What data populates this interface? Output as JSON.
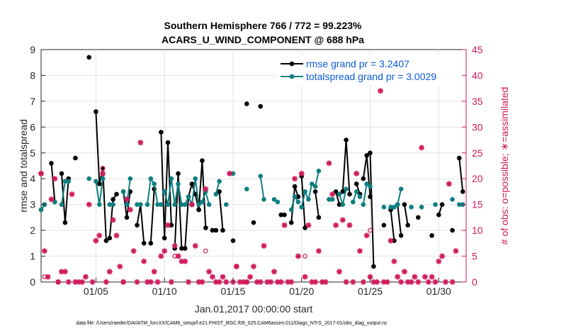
{
  "chart_data": {
    "type": "line",
    "title_line1": "Southern Hemisphere 766 / 772 = 99.223%",
    "title_line2": "ACARS_U_WIND_COMPONENT @ 688 hPa",
    "xlabel": "Jan.01,2017 00:00:00 start",
    "ylabel_left": "rmse and totalspread",
    "ylabel_right": "# of obs: o=possible; ∗=assimilated",
    "footnote": "data file: /Users/raeder/DAI/ATM_forcXX/CAM6_setup/f.e21.FHIST_BGC.f09_025.CAM6assim.011/Diags_NTrS_2017-01/obs_diag_output.nc",
    "xlim": [
      1,
      32
    ],
    "ylim_left": [
      0,
      9
    ],
    "ylim_right": [
      0,
      45
    ],
    "x_ticks": [
      5,
      10,
      15,
      20,
      25,
      30
    ],
    "x_tick_labels": [
      "01/05",
      "01/10",
      "01/15",
      "01/20",
      "01/25",
      "01/30"
    ],
    "y_left_ticks": [
      "0",
      "1",
      "2",
      "3",
      "4",
      "5",
      "6",
      "7",
      "8",
      "9"
    ],
    "y_right_ticks": [
      "0",
      "5",
      "10",
      "15",
      "20",
      "25",
      "30",
      "35",
      "40",
      "45"
    ],
    "colors": {
      "rmse": "#000000",
      "spread": "#0e7f80",
      "obs": "#d01b5c",
      "legend_text": "#0a5bd6"
    },
    "series": [
      {
        "name": "rmse grand pr = 3.2407",
        "segments": [
          [
            [
              1.0,
              2.8
            ],
            [
              1.25,
              3.0
            ]
          ],
          [
            [
              1.75,
              4.6
            ],
            [
              2.0,
              3.1
            ]
          ],
          [
            [
              2.5,
              4.2
            ],
            [
              2.75,
              2.3
            ],
            [
              3.0,
              4.0
            ]
          ],
          [
            [
              3.5,
              4.8
            ]
          ],
          [
            [
              4.5,
              8.7
            ]
          ],
          [
            [
              5.0,
              6.6
            ],
            [
              5.25,
              3.8
            ],
            [
              5.5,
              4.4
            ],
            [
              5.75,
              1.6
            ]
          ],
          [
            [
              6.0,
              1.7
            ],
            [
              6.25,
              3.2
            ],
            [
              6.5,
              3.4
            ]
          ],
          [
            [
              7.0,
              3.5
            ],
            [
              7.25,
              2.5
            ],
            [
              7.5,
              3.5
            ]
          ],
          [
            [
              8.0,
              2.2
            ],
            [
              8.25,
              3.0
            ],
            [
              8.5,
              1.5
            ]
          ],
          [
            [
              9.0,
              1.5
            ],
            [
              9.25,
              3.6
            ]
          ],
          [
            [
              9.75,
              5.8
            ],
            [
              10.0,
              1.7
            ],
            [
              10.25,
              5.4
            ],
            [
              10.5,
              2.2
            ]
          ],
          [
            [
              10.75,
              1.3
            ],
            [
              11.0,
              4.2
            ],
            [
              11.25,
              1.3
            ],
            [
              11.5,
              1.3
            ],
            [
              11.75,
              3.3
            ],
            [
              12.0,
              3.8
            ],
            [
              12.25,
              3.4
            ],
            [
              12.5,
              2.8
            ]
          ],
          [
            [
              12.5,
              2.8
            ],
            [
              12.75,
              4.7
            ],
            [
              13.0,
              2.1
            ]
          ],
          [
            [
              13.5,
              2.0
            ],
            [
              13.75,
              2.0
            ]
          ],
          [
            [
              14.0,
              3.5
            ],
            [
              14.25,
              2.0
            ]
          ],
          [
            [
              15.0,
              1.6
            ]
          ],
          [
            [
              16.0,
              6.9
            ]
          ],
          [
            [
              16.5,
              2.3
            ]
          ],
          [
            [
              17.0,
              6.8
            ]
          ],
          [
            [
              18.5,
              2.6
            ],
            [
              18.75,
              2.6
            ]
          ],
          [
            [
              19.25,
              2.3
            ],
            [
              19.5,
              3.7
            ],
            [
              19.75,
              3.3
            ]
          ],
          [
            [
              20.0,
              4.1
            ],
            [
              20.25,
              2.1
            ]
          ],
          [
            [
              21.0,
              3.5
            ],
            [
              21.25,
              2.5
            ]
          ],
          [
            [
              22.0,
              3.2
            ]
          ],
          [
            [
              22.5,
              3.5
            ],
            [
              22.75,
              3.0
            ]
          ],
          [
            [
              23.0,
              3.5
            ],
            [
              23.25,
              5.5
            ],
            [
              23.5,
              3.4
            ]
          ],
          [
            [
              24.0,
              3.8
            ],
            [
              24.25,
              3.4
            ]
          ],
          [
            [
              24.5,
              4.0
            ],
            [
              24.75,
              4.9
            ],
            [
              25.0,
              3.3
            ]
          ],
          [
            [
              25.0,
              5.0
            ],
            [
              25.25,
              0.6
            ]
          ],
          [
            [
              26.0,
              2.2
            ]
          ],
          [
            [
              26.5,
              2.8
            ],
            [
              26.75,
              1.6
            ]
          ],
          [
            [
              27.0,
              3.0
            ],
            [
              27.25,
              1.8
            ]
          ],
          [
            [
              27.5,
              3.0
            ],
            [
              27.75,
              2.2
            ]
          ],
          [
            [
              28.5,
              2.5
            ]
          ],
          [
            [
              29.5,
              1.8
            ]
          ],
          [
            [
              30.0,
              2.6
            ],
            [
              30.25,
              3.0
            ]
          ],
          [
            [
              31.0,
              2.0
            ]
          ],
          [
            [
              31.5,
              4.8
            ],
            [
              31.75,
              3.5
            ]
          ]
        ]
      },
      {
        "name": "totalspread grand pr = 3.0029",
        "segments": [
          [
            [
              1.0,
              2.8
            ],
            [
              1.25,
              3.0
            ]
          ],
          [
            [
              2.0,
              3.1
            ]
          ],
          [
            [
              2.5,
              3.0
            ],
            [
              2.75,
              3.9
            ],
            [
              3.0,
              3.9
            ]
          ],
          [
            [
              4.5,
              4.0
            ]
          ],
          [
            [
              5.0,
              3.9
            ],
            [
              5.25,
              3.0
            ],
            [
              5.5,
              4.0
            ]
          ],
          [
            [
              6.0,
              3.0
            ],
            [
              6.25,
              3.0
            ]
          ],
          [
            [
              7.0,
              3.5
            ],
            [
              7.25,
              3.0
            ],
            [
              7.5,
              4.0
            ]
          ],
          [
            [
              8.0,
              3.0
            ],
            [
              8.25,
              3.0
            ]
          ],
          [
            [
              8.75,
              3.0
            ],
            [
              9.0,
              4.0
            ],
            [
              9.25,
              3.8
            ],
            [
              9.5,
              3.0
            ],
            [
              9.75,
              3.0
            ]
          ],
          [
            [
              10.0,
              3.5
            ],
            [
              10.25,
              3.0
            ],
            [
              10.5,
              4.0
            ],
            [
              10.75,
              3.0
            ],
            [
              11.0,
              3.8
            ],
            [
              11.25,
              3.0
            ],
            [
              11.5,
              3.0
            ],
            [
              11.75,
              3.3
            ],
            [
              12.0,
              3.0
            ],
            [
              12.25,
              4.0
            ],
            [
              12.5,
              3.0
            ]
          ],
          [
            [
              12.75,
              3.1
            ],
            [
              13.0,
              3.5
            ],
            [
              13.25,
              3.0
            ]
          ],
          [
            [
              13.75,
              3.4
            ],
            [
              14.0,
              3.9
            ]
          ],
          [
            [
              14.5,
              3.0
            ]
          ],
          [
            [
              15.0,
              4.2
            ]
          ],
          [
            [
              16.0,
              3.6
            ]
          ],
          [
            [
              17.0,
              4.1
            ],
            [
              17.25,
              3.2
            ]
          ],
          [
            [
              18.0,
              3.2
            ],
            [
              18.25,
              3.1
            ]
          ],
          [
            [
              19.25,
              2.8
            ],
            [
              19.5,
              3.3
            ],
            [
              19.75,
              3.1
            ]
          ],
          [
            [
              20.0,
              2.9
            ],
            [
              20.25,
              3.5
            ],
            [
              20.5,
              3.2
            ],
            [
              20.75,
              3.8
            ],
            [
              21.0,
              3.7
            ],
            [
              21.25,
              4.3
            ]
          ],
          [
            [
              22.0,
              3.2
            ],
            [
              22.25,
              3.2
            ]
          ],
          [
            [
              22.75,
              3.4
            ],
            [
              23.0,
              3.0
            ],
            [
              23.25,
              3.6
            ]
          ],
          [
            [
              23.75,
              3.1
            ],
            [
              24.0,
              3.5
            ],
            [
              24.25,
              3.3
            ]
          ],
          [
            [
              24.5,
              3.0
            ],
            [
              24.75,
              3.8
            ],
            [
              25.0,
              3.7
            ]
          ],
          [
            [
              26.0,
              2.9
            ]
          ],
          [
            [
              26.5,
              2.9
            ],
            [
              26.75,
              2.9
            ]
          ],
          [
            [
              27.0,
              3.0
            ],
            [
              27.25,
              3.6
            ]
          ],
          [
            [
              28.0,
              2.9
            ]
          ],
          [
            [
              28.75,
              2.9
            ]
          ],
          [
            [
              29.75,
              3.0
            ]
          ],
          [
            [
              31.0,
              3.2
            ]
          ],
          [
            [
              31.5,
              3.0
            ],
            [
              31.75,
              3.0
            ]
          ]
        ]
      }
    ],
    "obs_assimilated": [
      [
        1.0,
        21
      ],
      [
        1.25,
        6
      ],
      [
        1.5,
        1
      ],
      [
        1.75,
        16
      ],
      [
        2.0,
        20
      ],
      [
        2.25,
        0
      ],
      [
        2.5,
        2
      ],
      [
        2.75,
        2
      ],
      [
        3.0,
        0
      ],
      [
        3.25,
        17
      ],
      [
        3.5,
        0
      ],
      [
        3.75,
        0
      ],
      [
        4.0,
        0
      ],
      [
        4.25,
        1
      ],
      [
        4.5,
        15
      ],
      [
        4.75,
        0
      ],
      [
        5.0,
        8
      ],
      [
        5.25,
        9
      ],
      [
        5.5,
        21
      ],
      [
        5.75,
        0
      ],
      [
        6.0,
        2
      ],
      [
        6.25,
        12
      ],
      [
        6.5,
        9
      ],
      [
        6.75,
        3
      ],
      [
        7.0,
        0
      ],
      [
        7.25,
        16
      ],
      [
        7.5,
        14
      ],
      [
        7.75,
        6
      ],
      [
        8.0,
        0
      ],
      [
        8.25,
        27
      ],
      [
        8.5,
        4
      ],
      [
        8.75,
        0
      ],
      [
        9.0,
        0
      ],
      [
        9.25,
        2
      ],
      [
        9.5,
        0
      ],
      [
        9.75,
        5
      ],
      [
        10.0,
        6
      ],
      [
        10.25,
        11
      ],
      [
        10.5,
        0
      ],
      [
        10.75,
        7
      ],
      [
        11.0,
        5
      ],
      [
        11.25,
        4
      ],
      [
        11.5,
        4
      ],
      [
        11.75,
        0
      ],
      [
        12.0,
        15
      ],
      [
        12.25,
        7
      ],
      [
        12.5,
        0
      ],
      [
        12.75,
        0
      ],
      [
        13.0,
        18
      ],
      [
        13.25,
        2
      ],
      [
        13.5,
        1
      ],
      [
        13.75,
        0
      ],
      [
        14.0,
        0
      ],
      [
        14.25,
        1
      ],
      [
        14.5,
        0
      ],
      [
        14.75,
        21
      ],
      [
        15.0,
        0
      ],
      [
        15.25,
        3
      ],
      [
        15.5,
        0
      ],
      [
        15.75,
        0
      ],
      [
        16.0,
        0
      ],
      [
        16.25,
        1
      ],
      [
        16.5,
        3
      ],
      [
        16.75,
        0
      ],
      [
        17.0,
        0
      ],
      [
        17.25,
        7
      ],
      [
        17.5,
        0
      ],
      [
        17.75,
        0
      ],
      [
        18.0,
        2
      ],
      [
        18.25,
        0
      ],
      [
        18.5,
        0
      ],
      [
        18.75,
        11
      ],
      [
        19.0,
        0
      ],
      [
        19.25,
        0
      ],
      [
        19.5,
        20
      ],
      [
        19.75,
        5
      ],
      [
        20.0,
        21
      ],
      [
        20.25,
        1
      ],
      [
        20.5,
        11
      ],
      [
        20.75,
        0
      ],
      [
        21.0,
        0
      ],
      [
        21.25,
        6
      ],
      [
        21.5,
        0
      ],
      [
        21.75,
        0
      ],
      [
        22.0,
        23
      ],
      [
        22.25,
        17
      ],
      [
        22.5,
        11
      ],
      [
        22.75,
        2
      ],
      [
        23.0,
        12
      ],
      [
        23.25,
        0
      ],
      [
        23.5,
        11
      ],
      [
        23.75,
        0
      ],
      [
        24.0,
        21
      ],
      [
        24.25,
        6
      ],
      [
        24.5,
        0
      ],
      [
        24.75,
        9
      ],
      [
        25.0,
        1
      ],
      [
        25.25,
        0
      ],
      [
        25.5,
        0
      ],
      [
        25.75,
        37
      ],
      [
        26.0,
        0
      ],
      [
        26.25,
        0
      ],
      [
        26.5,
        8
      ],
      [
        26.75,
        4
      ],
      [
        27.0,
        1
      ],
      [
        27.25,
        0
      ],
      [
        27.5,
        2
      ],
      [
        27.75,
        0
      ],
      [
        28.0,
        0
      ],
      [
        28.25,
        1
      ],
      [
        28.5,
        0
      ],
      [
        28.75,
        26
      ],
      [
        29.0,
        1
      ],
      [
        29.25,
        0
      ],
      [
        29.5,
        1
      ],
      [
        29.75,
        0
      ],
      [
        30.0,
        4
      ],
      [
        30.25,
        5
      ],
      [
        30.5,
        0
      ],
      [
        30.75,
        19
      ],
      [
        31.0,
        0
      ],
      [
        31.25,
        6
      ]
    ],
    "obs_possible": [
      [
        1.0,
        21
      ],
      [
        1.25,
        1
      ],
      [
        2.25,
        0
      ],
      [
        5.5,
        22
      ],
      [
        7.0,
        0
      ],
      [
        10.75,
        5
      ],
      [
        13.0,
        6
      ],
      [
        15.25,
        3
      ],
      [
        16.0,
        0
      ],
      [
        20.25,
        5
      ],
      [
        25.0,
        10
      ]
    ]
  }
}
